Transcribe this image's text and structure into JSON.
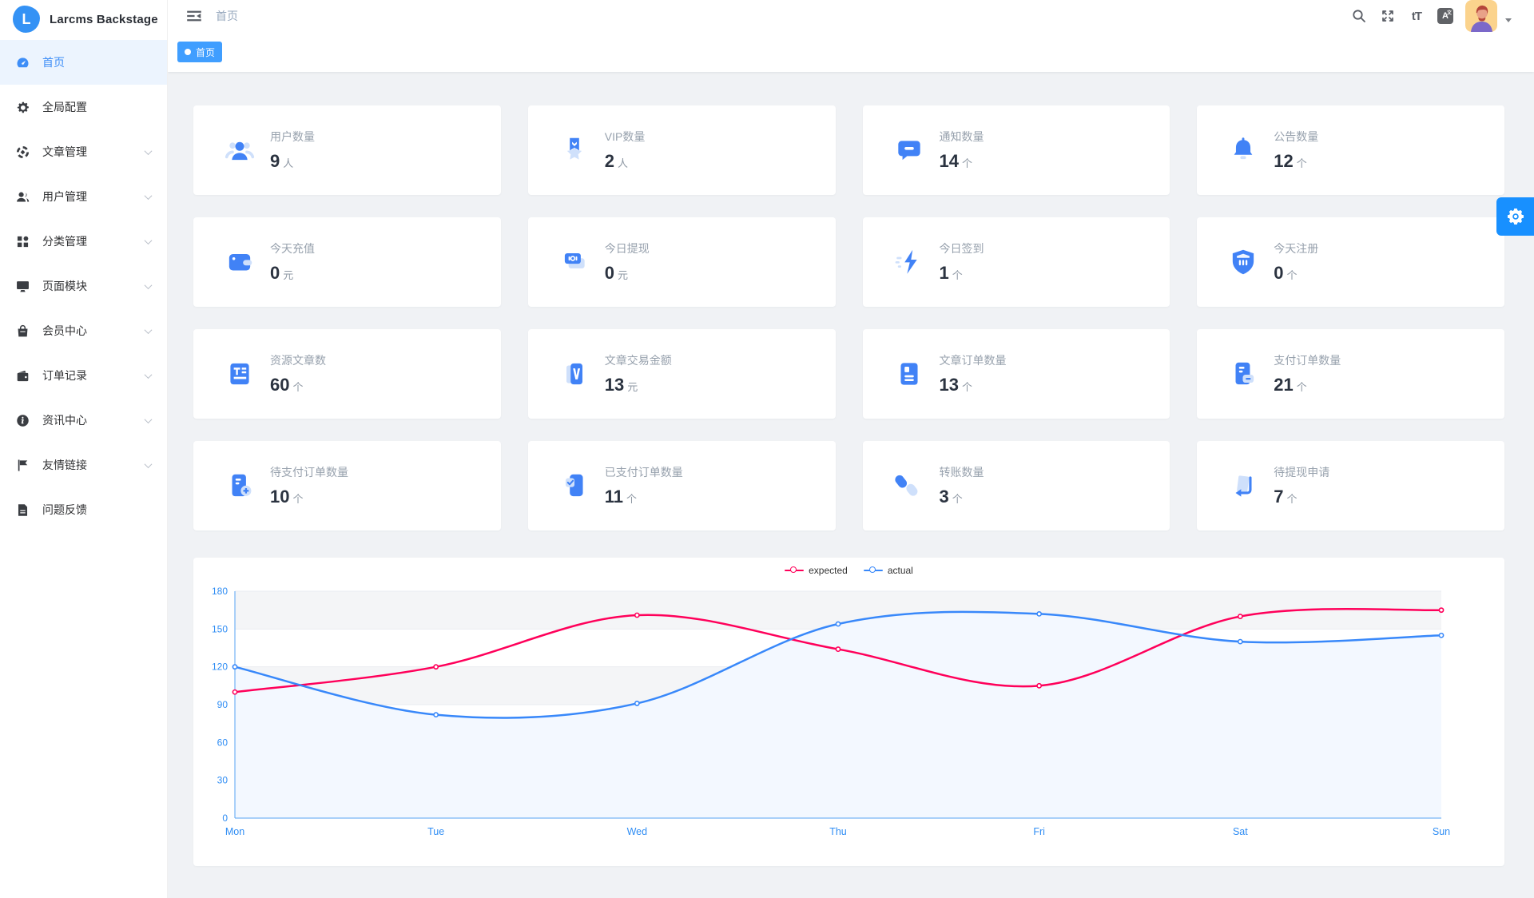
{
  "app": {
    "title": "Larcms Backstage",
    "logo_letter": "L"
  },
  "navbar": {
    "breadcrumb": "首页",
    "icons": [
      "hamburger-icon",
      "search-icon",
      "fullscreen-icon",
      "font-size-icon",
      "language-icon",
      "avatar",
      "caret-down-icon"
    ]
  },
  "tagbar": {
    "tags": [
      {
        "label": "首页",
        "active": true
      }
    ]
  },
  "sidebar": {
    "items": [
      {
        "label": "首页",
        "icon": "dashboard-icon",
        "active": true,
        "expandable": false
      },
      {
        "label": "全局配置",
        "icon": "gear-icon",
        "active": false,
        "expandable": false
      },
      {
        "label": "文章管理",
        "icon": "compass-icon",
        "active": false,
        "expandable": true
      },
      {
        "label": "用户管理",
        "icon": "users-icon",
        "active": false,
        "expandable": true
      },
      {
        "label": "分类管理",
        "icon": "grid-icon",
        "active": false,
        "expandable": true
      },
      {
        "label": "页面模块",
        "icon": "monitor-icon",
        "active": false,
        "expandable": true
      },
      {
        "label": "会员中心",
        "icon": "bag-icon",
        "active": false,
        "expandable": true
      },
      {
        "label": "订单记录",
        "icon": "wallet-icon",
        "active": false,
        "expandable": true
      },
      {
        "label": "资讯中心",
        "icon": "info-icon",
        "active": false,
        "expandable": true
      },
      {
        "label": "友情链接",
        "icon": "flag-icon",
        "active": false,
        "expandable": true
      },
      {
        "label": "问题反馈",
        "icon": "file-icon",
        "active": false,
        "expandable": false
      }
    ]
  },
  "stat_cards": [
    {
      "label": "用户数量",
      "value": "9",
      "unit": "人",
      "icon": "stat-users-icon"
    },
    {
      "label": "VIP数量",
      "value": "2",
      "unit": "人",
      "icon": "stat-vip-icon"
    },
    {
      "label": "通知数量",
      "value": "14",
      "unit": "个",
      "icon": "stat-notice-icon"
    },
    {
      "label": "公告数量",
      "value": "12",
      "unit": "个",
      "icon": "stat-announce-icon"
    },
    {
      "label": "今天充值",
      "value": "0",
      "unit": "元",
      "icon": "stat-recharge-icon"
    },
    {
      "label": "今日提现",
      "value": "0",
      "unit": "元",
      "icon": "stat-withdraw-icon"
    },
    {
      "label": "今日签到",
      "value": "1",
      "unit": "个",
      "icon": "stat-signin-icon"
    },
    {
      "label": "今天注册",
      "value": "0",
      "unit": "个",
      "icon": "stat-register-icon"
    },
    {
      "label": "资源文章数",
      "value": "60",
      "unit": "个",
      "icon": "stat-resource-icon"
    },
    {
      "label": "文章交易金额",
      "value": "13",
      "unit": "元",
      "icon": "stat-trade-icon"
    },
    {
      "label": "文章订单数量",
      "value": "13",
      "unit": "个",
      "icon": "stat-article-order-icon"
    },
    {
      "label": "支付订单数量",
      "value": "21",
      "unit": "个",
      "icon": "stat-pay-order-icon"
    },
    {
      "label": "待支付订单数量",
      "value": "10",
      "unit": "个",
      "icon": "stat-pending-pay-icon"
    },
    {
      "label": "已支付订单数量",
      "value": "11",
      "unit": "个",
      "icon": "stat-paid-icon"
    },
    {
      "label": "转账数量",
      "value": "3",
      "unit": "个",
      "icon": "stat-transfer-icon"
    },
    {
      "label": "待提现申请",
      "value": "7",
      "unit": "个",
      "icon": "stat-withdraw-apply-icon"
    }
  ],
  "chart_data": {
    "type": "line",
    "categories": [
      "Mon",
      "Tue",
      "Wed",
      "Thu",
      "Fri",
      "Sat",
      "Sun"
    ],
    "series": [
      {
        "name": "expected",
        "color": "#FF005A",
        "values": [
          100,
          120,
          161,
          134,
          105,
          160,
          165
        ],
        "area": false
      },
      {
        "name": "actual",
        "color": "#3888fa",
        "values": [
          120,
          82,
          91,
          154,
          162,
          140,
          145
        ],
        "area": true
      }
    ],
    "ylim": [
      0,
      180
    ],
    "yticks": [
      0,
      30,
      60,
      90,
      120,
      150,
      180
    ],
    "legend_position": "top-center",
    "grid": true,
    "smooth": true,
    "area_color": "#f3f8ff",
    "axis_line_color": "#57a3f3",
    "axis_label_color": "#2f8df4",
    "split_line_color": "#e9ecf1",
    "split_area_color": "rgba(205,210,218,0.22)"
  },
  "settings_button": {
    "icon": "gear-icon"
  },
  "colors": {
    "accent": "#409eff",
    "card_icon_primary": "#4182f6",
    "card_icon_light": "#cfe0fb",
    "active_bg": "#ecf4fe"
  }
}
